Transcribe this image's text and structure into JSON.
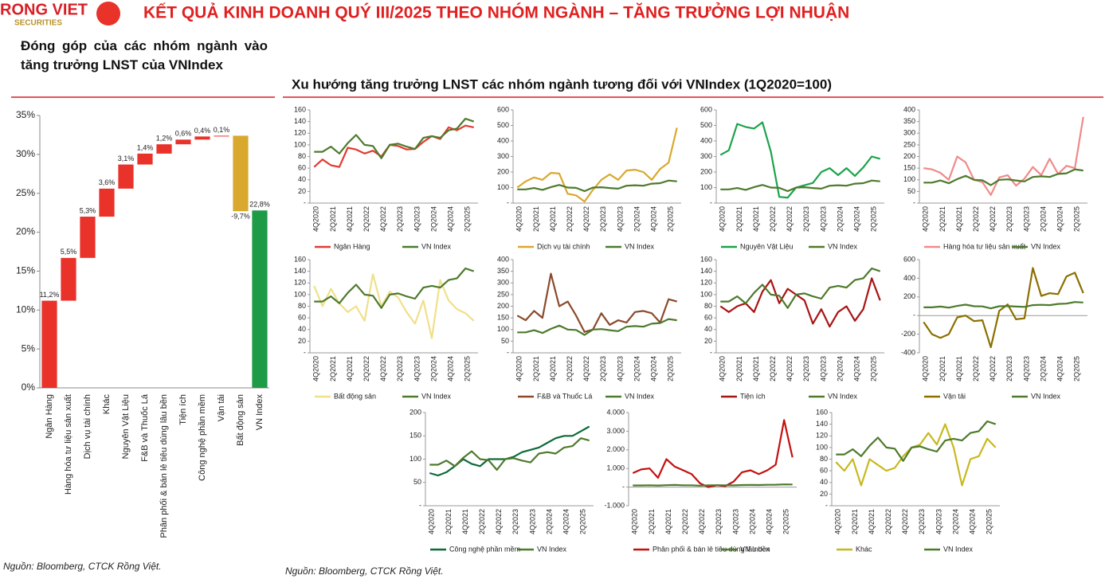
{
  "header": {
    "logo": "RONG VIET",
    "logo_sub": "SECURITIES",
    "title": "KẾT QUẢ KINH DOANH QUÝ III/2025 THEO NHÓM NGÀNH – TĂNG TRƯỞNG LỢI NHUẬN"
  },
  "left_heading": "Đóng góp của các nhóm ngành vào tăng trưởng LNST của VNIndex",
  "right_heading": "Xu hướng tăng trưởng LNST các nhóm ngành tương đối với VNIndex (1Q2020=100)",
  "sources": [
    "Nguồn: Bloomberg, CTCK Rồng Việt.",
    "Nguồn: Bloomberg, CTCK Rồng Việt."
  ],
  "chart_data": [
    {
      "type": "waterfall",
      "categories": [
        "Ngân Hàng",
        "Hàng hóa tư liệu sản xuất",
        "Dịch vụ tài chính",
        "Khác",
        "Nguyên Vật Liệu",
        "F&B và Thuốc Lá",
        "Phân phối & bán lẻ tiêu dùng lâu bền",
        "Tiện ích",
        "Công nghệ phần mềm",
        "Vận tải",
        "Bất động sản",
        "VN Index"
      ],
      "values": [
        11.2,
        5.5,
        5.3,
        3.6,
        3.1,
        1.4,
        1.2,
        0.6,
        0.4,
        0.1,
        -9.7,
        22.8
      ],
      "value_labels": [
        "11,2%",
        "5,5%",
        "5,3%",
        "3,6%",
        "3,1%",
        "1,4%",
        "1,2%",
        "0,6%",
        "0,4%",
        "0,1%",
        "-9,7%",
        "22,8%"
      ],
      "colors": [
        "#e8322a",
        "#e8322a",
        "#e8322a",
        "#e8322a",
        "#e8322a",
        "#e8322a",
        "#e8322a",
        "#e8322a",
        "#e8322a",
        "#e8322a",
        "#d9a82e",
        "#1f9a46"
      ],
      "total_last": true,
      "ylim": [
        0,
        35
      ],
      "yticks": [
        {
          "value": 0,
          "label": "0%"
        },
        {
          "value": 5,
          "label": "5%"
        },
        {
          "value": 10,
          "label": "10%"
        },
        {
          "value": 15,
          "label": "15%"
        },
        {
          "value": 20,
          "label": "20%"
        },
        {
          "value": 25,
          "label": "25%"
        },
        {
          "value": 30,
          "label": "30%"
        },
        {
          "value": 35,
          "label": "35%"
        }
      ]
    },
    {
      "type": "line",
      "categories": [
        "4Q2020",
        null,
        "2Q2021",
        null,
        "4Q2021",
        null,
        "2Q2022",
        null,
        "4Q2022",
        null,
        "2Q2023",
        null,
        "4Q2023",
        null,
        "2Q2024",
        null,
        "4Q2024",
        null,
        "2Q2025",
        null
      ],
      "series": [
        {
          "name": "Ngân Hàng",
          "color": "#e03c31",
          "values": [
            62,
            75,
            65,
            62,
            95,
            92,
            85,
            90,
            80,
            100,
            98,
            92,
            93,
            105,
            115,
            110,
            130,
            125,
            133,
            130
          ]
        },
        {
          "name": "VN Index",
          "color": "#4d7a2c",
          "values": [
            88,
            88,
            97,
            85,
            103,
            117,
            100,
            98,
            77,
            100,
            102,
            97,
            93,
            112,
            115,
            112,
            125,
            128,
            145,
            140
          ]
        }
      ],
      "ylim": [
        0,
        160
      ],
      "yticks": [
        {
          "value": 0,
          "label": "-"
        },
        20,
        40,
        60,
        80,
        100,
        120,
        140,
        160
      ],
      "legend": "bottom"
    },
    {
      "type": "line",
      "categories": [
        "4Q2020",
        null,
        "2Q2021",
        null,
        "4Q2021",
        null,
        "2Q2022",
        null,
        "4Q2022",
        null,
        "2Q2023",
        null,
        "4Q2023",
        null,
        "2Q2024",
        null,
        "4Q2024",
        null,
        "2Q2025",
        null
      ],
      "series": [
        {
          "name": "Dịch vụ tài chính",
          "color": "#d9a82e",
          "values": [
            100,
            140,
            165,
            150,
            195,
            190,
            60,
            50,
            10,
            85,
            150,
            185,
            150,
            210,
            215,
            200,
            150,
            220,
            260,
            485
          ]
        },
        {
          "name": "VN Index",
          "color": "#4d7a2c",
          "values": [
            88,
            88,
            97,
            85,
            103,
            117,
            100,
            98,
            77,
            100,
            102,
            97,
            93,
            112,
            115,
            112,
            125,
            128,
            145,
            140
          ]
        }
      ],
      "ylim": [
        0,
        600
      ],
      "yticks": [
        {
          "value": 0,
          "label": "-"
        },
        100,
        200,
        300,
        400,
        500,
        600
      ],
      "legend": "bottom"
    },
    {
      "type": "line",
      "categories": [
        "4Q2020",
        null,
        "2Q2021",
        null,
        "4Q2021",
        null,
        "2Q2022",
        null,
        "4Q2022",
        null,
        "2Q2023",
        null,
        "4Q2023",
        null,
        "2Q2024",
        null,
        "4Q2024",
        null,
        "2Q2025",
        null
      ],
      "series": [
        {
          "name": "Nguyên Vật Liệu",
          "color": "#1aa34a",
          "values": [
            310,
            340,
            510,
            490,
            480,
            520,
            330,
            40,
            35,
            100,
            115,
            130,
            200,
            225,
            180,
            225,
            175,
            230,
            300,
            285
          ]
        },
        {
          "name": "VN Index",
          "color": "#4d7a2c",
          "values": [
            88,
            88,
            97,
            85,
            103,
            117,
            100,
            98,
            77,
            100,
            102,
            97,
            93,
            112,
            115,
            112,
            125,
            128,
            145,
            140
          ]
        }
      ],
      "ylim": [
        0,
        600
      ],
      "yticks": [
        {
          "value": 0,
          "label": "-"
        },
        100,
        200,
        300,
        400,
        500,
        600
      ],
      "legend": "bottom"
    },
    {
      "type": "line",
      "categories": [
        "4Q2020",
        null,
        "2Q2021",
        null,
        "4Q2021",
        null,
        "2Q2022",
        null,
        "4Q2022",
        null,
        "2Q2023",
        null,
        "4Q2023",
        null,
        "2Q2024",
        null,
        "4Q2024",
        null,
        "2Q2025",
        null
      ],
      "series": [
        {
          "name": "Hàng hóa tư liệu sản xuất",
          "color": "#f08a8a",
          "values": [
            150,
            145,
            130,
            100,
            200,
            175,
            100,
            90,
            35,
            110,
            120,
            75,
            105,
            155,
            120,
            190,
            125,
            160,
            150,
            370
          ]
        },
        {
          "name": "VN Index",
          "color": "#4d7a2c",
          "values": [
            88,
            88,
            97,
            85,
            103,
            117,
            100,
            98,
            77,
            100,
            102,
            97,
            93,
            112,
            115,
            112,
            125,
            128,
            145,
            140
          ]
        }
      ],
      "ylim": [
        0,
        400
      ],
      "yticks": [
        {
          "value": 0,
          "label": "-"
        },
        50,
        100,
        150,
        200,
        250,
        300,
        350,
        400
      ],
      "legend": "bottom"
    },
    {
      "type": "line",
      "categories": [
        "4Q2020",
        null,
        "2Q2021",
        null,
        "4Q2021",
        null,
        "2Q2022",
        null,
        "4Q2022",
        null,
        "2Q2023",
        null,
        "4Q2023",
        null,
        "2Q2024",
        null,
        "4Q2024",
        null,
        "2Q2025",
        null
      ],
      "series": [
        {
          "name": "Bất động sản",
          "color": "#f0e08a",
          "values": [
            115,
            80,
            110,
            85,
            70,
            80,
            55,
            135,
            80,
            105,
            95,
            70,
            50,
            90,
            25,
            125,
            90,
            75,
            68,
            55
          ]
        },
        {
          "name": "VN Index",
          "color": "#4d7a2c",
          "values": [
            88,
            88,
            97,
            85,
            103,
            117,
            100,
            98,
            77,
            100,
            102,
            97,
            93,
            112,
            115,
            112,
            125,
            128,
            145,
            140
          ]
        }
      ],
      "ylim": [
        0,
        160
      ],
      "yticks": [
        {
          "value": 0,
          "label": "-"
        },
        20,
        40,
        60,
        80,
        100,
        120,
        140,
        160
      ],
      "legend": "bottom"
    },
    {
      "type": "line",
      "categories": [
        "4Q2020",
        null,
        "2Q2021",
        null,
        "4Q2021",
        null,
        "2Q2022",
        null,
        "4Q2022",
        null,
        "2Q2023",
        null,
        "4Q2023",
        null,
        "2Q2024",
        null,
        "4Q2024",
        null,
        "2Q2025",
        null
      ],
      "series": [
        {
          "name": "F&B và Thuốc Lá",
          "color": "#8b4a2b",
          "values": [
            160,
            140,
            180,
            150,
            340,
            200,
            220,
            160,
            90,
            100,
            170,
            120,
            140,
            130,
            175,
            180,
            170,
            130,
            230,
            220
          ]
        },
        {
          "name": "VN Index",
          "color": "#4d7a2c",
          "values": [
            88,
            88,
            97,
            85,
            103,
            117,
            100,
            98,
            77,
            100,
            102,
            97,
            93,
            112,
            115,
            112,
            125,
            128,
            145,
            140
          ]
        }
      ],
      "ylim": [
        0,
        400
      ],
      "yticks": [
        {
          "value": 0,
          "label": "-"
        },
        50,
        100,
        150,
        200,
        250,
        300,
        350,
        400
      ],
      "legend": "bottom"
    },
    {
      "type": "line",
      "categories": [
        "4Q2020",
        null,
        "2Q2021",
        null,
        "4Q2021",
        null,
        "2Q2022",
        null,
        "4Q2022",
        null,
        "2Q2023",
        null,
        "4Q2023",
        null,
        "2Q2024",
        null,
        "4Q2024",
        null,
        "2Q2025",
        null
      ],
      "series": [
        {
          "name": "Tiện ích",
          "color": "#a81414",
          "values": [
            80,
            70,
            80,
            85,
            70,
            105,
            125,
            85,
            110,
            100,
            90,
            50,
            75,
            45,
            70,
            80,
            55,
            75,
            128,
            90
          ]
        },
        {
          "name": "VN Index",
          "color": "#4d7a2c",
          "values": [
            88,
            88,
            97,
            85,
            103,
            117,
            100,
            98,
            77,
            100,
            102,
            97,
            93,
            112,
            115,
            112,
            125,
            128,
            145,
            140
          ]
        }
      ],
      "ylim": [
        0,
        160
      ],
      "yticks": [
        {
          "value": 0,
          "label": "-"
        },
        20,
        40,
        60,
        80,
        100,
        120,
        140,
        160
      ],
      "legend": "bottom"
    },
    {
      "type": "line",
      "categories": [
        "4Q2020",
        null,
        "2Q2021",
        null,
        "4Q2021",
        null,
        "2Q2022",
        null,
        "4Q2022",
        null,
        "2Q2023",
        null,
        "4Q2023",
        null,
        "2Q2024",
        null,
        "4Q2024",
        null,
        "2Q2025",
        null
      ],
      "series": [
        {
          "name": "Vận tải",
          "color": "#8b7000",
          "values": [
            -70,
            -200,
            -240,
            -200,
            -20,
            0,
            -60,
            -50,
            -340,
            50,
            120,
            -40,
            -30,
            510,
            210,
            240,
            230,
            420,
            460,
            240
          ]
        },
        {
          "name": "VN Index",
          "color": "#4d7a2c",
          "values": [
            88,
            88,
            97,
            85,
            103,
            117,
            100,
            98,
            77,
            100,
            102,
            97,
            93,
            112,
            115,
            112,
            125,
            128,
            145,
            140
          ]
        }
      ],
      "ylim": [
        -400,
        600
      ],
      "yticks": [
        -400,
        -200,
        {
          "value": 0,
          "label": "-"
        },
        200,
        400,
        600
      ],
      "legend": "bottom"
    },
    {
      "type": "line",
      "categories": [
        "4Q2020",
        null,
        "2Q2021",
        null,
        "4Q2021",
        null,
        "2Q2022",
        null,
        "4Q2022",
        null,
        "2Q2023",
        null,
        "4Q2023",
        null,
        "2Q2024",
        null,
        "4Q2024",
        null,
        "2Q2025",
        null
      ],
      "series": [
        {
          "name": "Công nghệ phần mềm",
          "color": "#0a6a3a",
          "values": [
            70,
            65,
            72,
            85,
            100,
            90,
            85,
            100,
            100,
            100,
            105,
            115,
            120,
            125,
            135,
            145,
            150,
            150,
            160,
            170
          ]
        },
        {
          "name": "VN Index",
          "color": "#4d7a2c",
          "values": [
            88,
            88,
            97,
            85,
            103,
            117,
            100,
            98,
            77,
            100,
            102,
            97,
            93,
            112,
            115,
            112,
            125,
            128,
            145,
            140
          ]
        }
      ],
      "ylim": [
        0,
        200
      ],
      "yticks": [
        {
          "value": 0,
          "label": "-"
        },
        50,
        100,
        150,
        200
      ],
      "legend": "bottom"
    },
    {
      "type": "line",
      "categories": [
        "4Q2020",
        null,
        "2Q2021",
        null,
        "4Q2021",
        null,
        "2Q2022",
        null,
        "4Q2022",
        null,
        "2Q2023",
        null,
        "4Q2023",
        null,
        "2Q2024",
        null,
        "4Q2024",
        null,
        "2Q2025",
        null
      ],
      "series": [
        {
          "name": "Phân phối & bán lẻ tiêu dùng lâu bền",
          "color": "#c41010",
          "values": [
            750,
            950,
            1000,
            500,
            1500,
            1100,
            900,
            700,
            200,
            0,
            100,
            50,
            300,
            800,
            900,
            700,
            900,
            1200,
            3600,
            1600
          ]
        },
        {
          "name": "VN Index",
          "color": "#4d7a2c",
          "values": [
            88,
            88,
            97,
            85,
            103,
            117,
            100,
            98,
            77,
            100,
            102,
            97,
            93,
            112,
            115,
            112,
            125,
            128,
            145,
            140
          ]
        }
      ],
      "ylim": [
        -1000,
        4000
      ],
      "yticks": [
        {
          "value": -1000,
          "label": "-1.000"
        },
        {
          "value": 0,
          "label": "-"
        },
        {
          "value": 1000,
          "label": "1.000"
        },
        {
          "value": 2000,
          "label": "2.000"
        },
        {
          "value": 3000,
          "label": "3.000"
        },
        {
          "value": 4000,
          "label": "4.000"
        }
      ],
      "legend": "bottom"
    },
    {
      "type": "line",
      "categories": [
        "4Q2020",
        null,
        "2Q2021",
        null,
        "4Q2021",
        null,
        "2Q2022",
        null,
        "4Q2022",
        null,
        "2Q2023",
        null,
        "4Q2023",
        null,
        "2Q2024",
        null,
        "4Q2024",
        null,
        "2Q2025",
        null
      ],
      "series": [
        {
          "name": "Khác",
          "color": "#c8b820",
          "values": [
            75,
            60,
            80,
            35,
            80,
            70,
            60,
            65,
            85,
            100,
            105,
            125,
            105,
            140,
            100,
            35,
            80,
            85,
            115,
            100
          ]
        },
        {
          "name": "VN Index",
          "color": "#4d7a2c",
          "values": [
            88,
            88,
            97,
            85,
            103,
            117,
            100,
            98,
            77,
            100,
            102,
            97,
            93,
            112,
            115,
            112,
            125,
            128,
            145,
            140
          ]
        }
      ],
      "ylim": [
        0,
        160
      ],
      "yticks": [
        {
          "value": 0,
          "label": "-"
        },
        20,
        40,
        60,
        80,
        100,
        120,
        140,
        160
      ],
      "legend": "bottom"
    }
  ]
}
